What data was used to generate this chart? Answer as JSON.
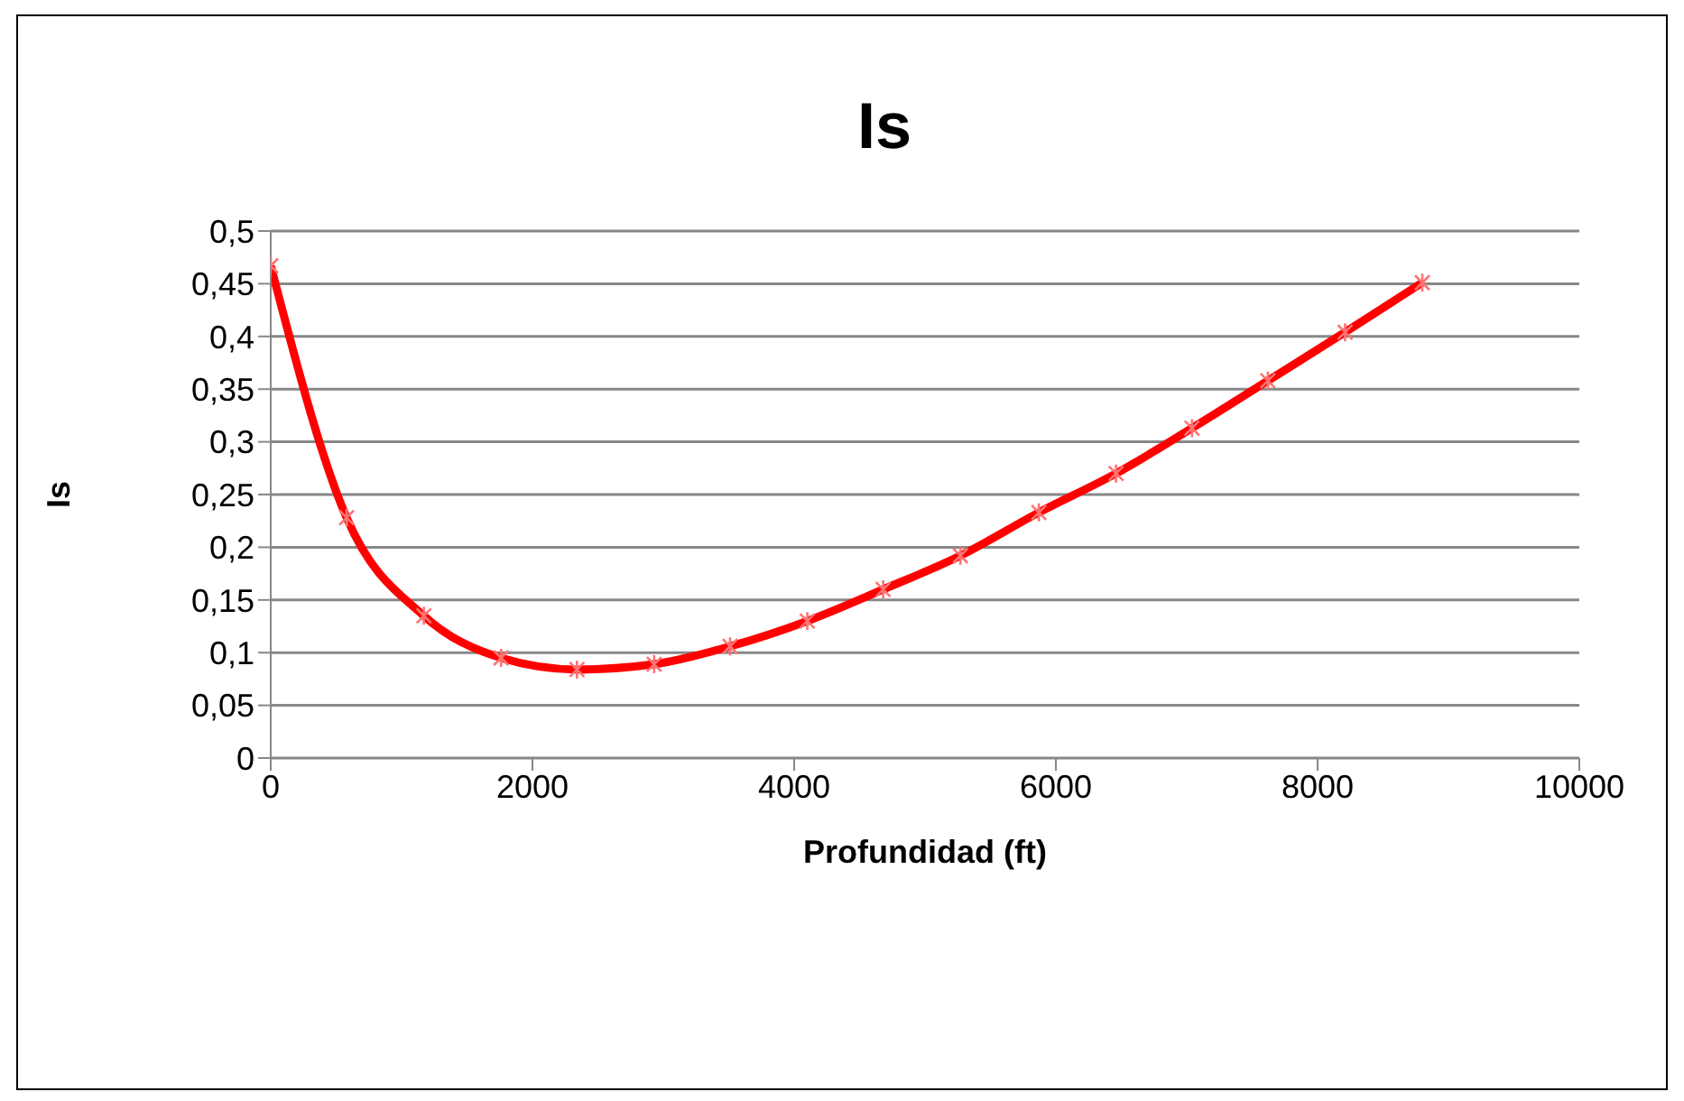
{
  "chart_data": {
    "type": "line",
    "title": "Is",
    "xlabel": "Profundidad  (ft)",
    "ylabel": "Is",
    "x": [
      0,
      580,
      1170,
      1760,
      2340,
      2930,
      3510,
      4100,
      4680,
      5270,
      5870,
      6460,
      7040,
      7620,
      8210,
      8800
    ],
    "series": [
      {
        "color": "#ff0000",
        "values": [
          0.467,
          0.228,
          0.135,
          0.095,
          0.084,
          0.089,
          0.106,
          0.13,
          0.16,
          0.192,
          0.233,
          0.27,
          0.313,
          0.358,
          0.404,
          0.451
        ]
      }
    ],
    "xlim": [
      0,
      10000
    ],
    "xticks": [
      0,
      2000,
      4000,
      6000,
      8000,
      10000
    ],
    "ylim": [
      0,
      0.5
    ],
    "yticks": [
      0,
      {
        "value": 0.05,
        "label": "0,05"
      },
      {
        "value": 0.1,
        "label": "0,1"
      },
      {
        "value": 0.15,
        "label": "0,15"
      },
      {
        "value": 0.2,
        "label": "0,2"
      },
      {
        "value": 0.25,
        "label": "0,25"
      },
      {
        "value": 0.3,
        "label": "0,3"
      },
      {
        "value": 0.35,
        "label": "0,35"
      },
      {
        "value": 0.4,
        "label": "0,4"
      },
      {
        "value": 0.45,
        "label": "0,45"
      },
      {
        "value": 0.5,
        "label": "0,5"
      }
    ],
    "grid": "y",
    "legend": false,
    "marker": "cross",
    "line_style": "solid"
  }
}
